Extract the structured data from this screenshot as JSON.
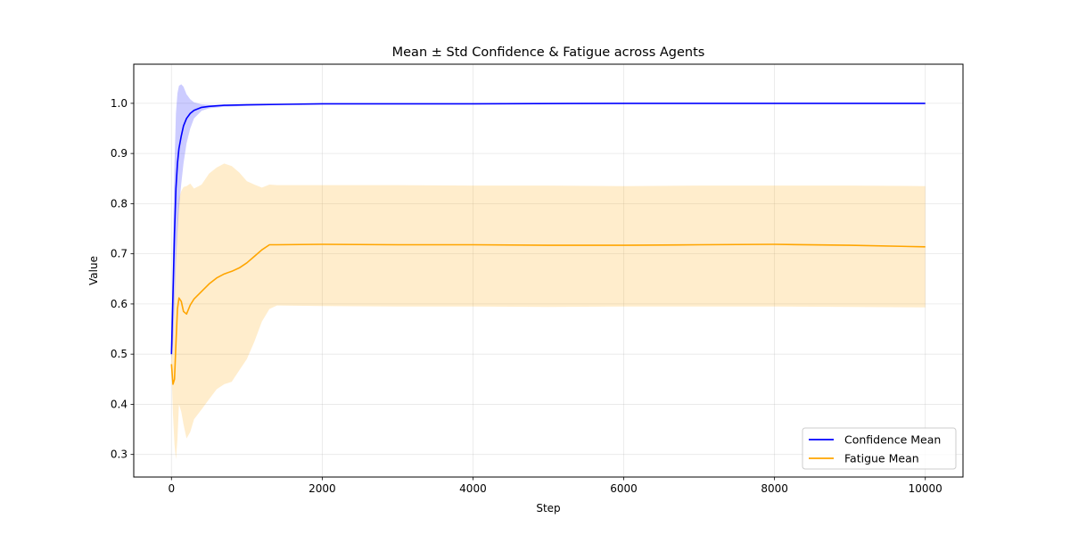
{
  "chart_data": {
    "type": "line",
    "title": "Mean ± Std Confidence & Fatigue across Agents",
    "xlabel": "Step",
    "ylabel": "Value",
    "xlim": [
      -500,
      10500
    ],
    "ylim": [
      0.255,
      1.078
    ],
    "x_ticks": [
      0,
      2000,
      4000,
      6000,
      8000,
      10000
    ],
    "y_ticks": [
      0.3,
      0.4,
      0.5,
      0.6,
      0.7,
      0.8,
      0.9,
      1.0
    ],
    "grid": true,
    "legend_position": "lower-right",
    "colors": {
      "confidence": "#0000ff",
      "fatigue": "#ffa500",
      "confidence_band": "#0000ff",
      "fatigue_band": "#ffa500"
    },
    "series": [
      {
        "name": "Confidence Mean",
        "color": "#0000ff",
        "x": [
          0,
          20,
          40,
          60,
          80,
          100,
          130,
          160,
          200,
          250,
          300,
          400,
          500,
          700,
          1000,
          1500,
          2000,
          4000,
          6000,
          8000,
          10000
        ],
        "mean": [
          0.5,
          0.62,
          0.74,
          0.83,
          0.88,
          0.91,
          0.935,
          0.955,
          0.97,
          0.98,
          0.986,
          0.992,
          0.994,
          0.996,
          0.997,
          0.998,
          0.999,
          0.999,
          1.0,
          1.0,
          1.0
        ],
        "upper": [
          0.51,
          0.72,
          0.88,
          0.98,
          1.02,
          1.035,
          1.038,
          1.033,
          1.018,
          1.008,
          1.002,
          0.998,
          0.997,
          0.997,
          0.998,
          0.999,
          0.999,
          1.0,
          1.0,
          1.0,
          1.0
        ],
        "lower": [
          0.49,
          0.52,
          0.6,
          0.68,
          0.74,
          0.79,
          0.84,
          0.88,
          0.92,
          0.95,
          0.97,
          0.985,
          0.99,
          0.993,
          0.995,
          0.997,
          0.998,
          0.999,
          0.999,
          1.0,
          1.0
        ]
      },
      {
        "name": "Fatigue Mean",
        "color": "#ffa500",
        "x": [
          0,
          20,
          40,
          60,
          80,
          100,
          130,
          160,
          200,
          250,
          300,
          400,
          500,
          600,
          700,
          800,
          900,
          1000,
          1100,
          1200,
          1300,
          1400,
          2000,
          3000,
          4000,
          5000,
          6000,
          7000,
          8000,
          9000,
          10000
        ],
        "mean": [
          0.48,
          0.44,
          0.45,
          0.52,
          0.59,
          0.612,
          0.605,
          0.585,
          0.58,
          0.598,
          0.61,
          0.625,
          0.64,
          0.652,
          0.66,
          0.665,
          0.672,
          0.682,
          0.695,
          0.708,
          0.718,
          0.718,
          0.719,
          0.718,
          0.718,
          0.717,
          0.717,
          0.718,
          0.719,
          0.717,
          0.714
        ],
        "upper": [
          0.49,
          0.55,
          0.62,
          0.7,
          0.77,
          0.81,
          0.825,
          0.833,
          0.835,
          0.84,
          0.83,
          0.838,
          0.86,
          0.872,
          0.88,
          0.875,
          0.862,
          0.845,
          0.838,
          0.832,
          0.838,
          0.837,
          0.837,
          0.837,
          0.836,
          0.836,
          0.835,
          0.836,
          0.836,
          0.836,
          0.835
        ],
        "lower": [
          0.47,
          0.38,
          0.32,
          0.29,
          0.33,
          0.4,
          0.385,
          0.36,
          0.332,
          0.345,
          0.37,
          0.39,
          0.41,
          0.43,
          0.44,
          0.445,
          0.468,
          0.49,
          0.525,
          0.565,
          0.59,
          0.597,
          0.596,
          0.595,
          0.595,
          0.594,
          0.595,
          0.595,
          0.595,
          0.594,
          0.593
        ]
      }
    ]
  }
}
